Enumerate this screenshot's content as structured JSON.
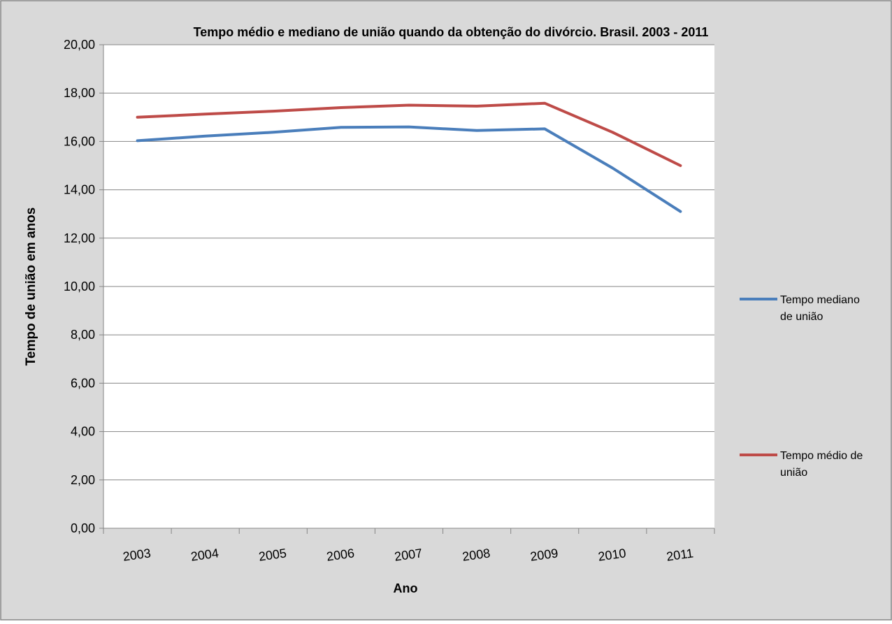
{
  "chart_data": {
    "type": "line",
    "title": "Tempo médio e mediano de união quando da obtenção do divórcio. Brasil. 2003 - 2011",
    "xlabel": "Ano",
    "ylabel": "Tempo de união em anos",
    "categories": [
      "2003",
      "2004",
      "2005",
      "2006",
      "2007",
      "2008",
      "2009",
      "2010",
      "2011"
    ],
    "ylim": [
      0,
      20
    ],
    "y_ticks": [
      "0,00",
      "2,00",
      "4,00",
      "6,00",
      "8,00",
      "10,00",
      "12,00",
      "14,00",
      "16,00",
      "18,00",
      "20,00"
    ],
    "grid": true,
    "legend_position": "right",
    "series": [
      {
        "name": "Tempo mediano de união",
        "legend_lines": [
          "Tempo mediano",
          "de união"
        ],
        "color": "#4a7ebb",
        "values": [
          16.03,
          16.22,
          16.38,
          16.58,
          16.6,
          16.45,
          16.52,
          14.9,
          13.1
        ]
      },
      {
        "name": "Tempo médio de união",
        "legend_lines": [
          "Tempo médio de",
          "união"
        ],
        "color": "#be4b48",
        "values": [
          17.0,
          17.13,
          17.25,
          17.4,
          17.5,
          17.46,
          17.58,
          16.38,
          15.0
        ]
      }
    ],
    "colors": {
      "background": "#d9d9d9",
      "plot_area": "#ffffff",
      "gridline": "#868686",
      "axis": "#868686",
      "border": "#868686",
      "text": "#000000"
    }
  }
}
